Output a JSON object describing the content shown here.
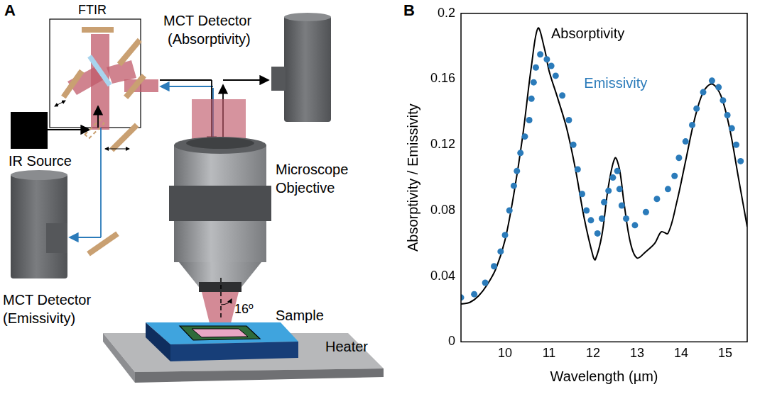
{
  "diagram": {
    "panel_label": "A",
    "ftir": "FTIR",
    "absorptivity_detector": [
      "MCT Detector",
      "(Absorptivity)"
    ],
    "ir_source": "IR Source",
    "emissivity_detector": [
      "MCT Detector",
      "(Emissivity)"
    ],
    "objective": [
      "Microscope",
      "Objective"
    ],
    "angle": "16º",
    "sample": "Sample",
    "heater": "Heater"
  },
  "chart_data": {
    "type": "scatter",
    "panel_label": "B",
    "x_label": "Wavelength (µm)",
    "y_label": "Absorptivity / Emissivity",
    "xlim": [
      9,
      15.5
    ],
    "xticks": [
      10,
      11,
      12,
      13,
      14,
      15
    ],
    "ylim": [
      0,
      0.2
    ],
    "yticks": [
      0,
      0.04,
      0.08,
      0.12,
      0.16,
      0.2
    ],
    "grid": false,
    "series": [
      {
        "name": "Absorptivity",
        "color": "#000000",
        "type": "line",
        "line_style": "solid",
        "x": [
          9.0,
          9.2,
          9.4,
          9.6,
          9.8,
          10.0,
          10.2,
          10.4,
          10.6,
          10.75,
          10.9,
          11.0,
          11.2,
          11.4,
          11.6,
          11.8,
          12.0,
          12.05,
          12.2,
          12.35,
          12.5,
          12.6,
          12.7,
          12.85,
          13.0,
          13.2,
          13.4,
          13.55,
          13.7,
          13.9,
          14.1,
          14.3,
          14.5,
          14.7,
          14.9,
          15.1,
          15.3,
          15.5
        ],
        "values": [
          0.023,
          0.024,
          0.028,
          0.035,
          0.045,
          0.062,
          0.09,
          0.125,
          0.168,
          0.191,
          0.178,
          0.165,
          0.148,
          0.13,
          0.105,
          0.075,
          0.052,
          0.05,
          0.065,
          0.095,
          0.112,
          0.105,
          0.085,
          0.06,
          0.051,
          0.055,
          0.06,
          0.067,
          0.066,
          0.085,
          0.11,
          0.135,
          0.152,
          0.157,
          0.15,
          0.13,
          0.1,
          0.07
        ]
      },
      {
        "name": "Emissivity",
        "color": "#2b7bba",
        "type": "scatter",
        "marker": "circle",
        "x": [
          9.0,
          9.3,
          9.55,
          9.75,
          9.9,
          10.0,
          10.1,
          10.2,
          10.27,
          10.35,
          10.45,
          10.55,
          10.6,
          10.65,
          10.7,
          10.8,
          10.95,
          11.05,
          11.15,
          11.3,
          11.45,
          11.55,
          11.65,
          11.75,
          11.85,
          11.95,
          12.1,
          12.2,
          12.25,
          12.35,
          12.45,
          12.55,
          12.6,
          12.65,
          12.75,
          12.95,
          13.2,
          13.45,
          13.7,
          13.85,
          13.95,
          14.1,
          14.25,
          14.35,
          14.5,
          14.7,
          14.85,
          14.95,
          15.05,
          15.15,
          15.25,
          15.35
        ],
        "values": [
          0.027,
          0.029,
          0.036,
          0.046,
          0.055,
          0.065,
          0.08,
          0.095,
          0.104,
          0.115,
          0.125,
          0.135,
          0.148,
          0.158,
          0.167,
          0.175,
          0.172,
          0.168,
          0.162,
          0.15,
          0.135,
          0.12,
          0.105,
          0.09,
          0.08,
          0.074,
          0.066,
          0.075,
          0.085,
          0.092,
          0.1,
          0.104,
          0.093,
          0.083,
          0.075,
          0.071,
          0.079,
          0.087,
          0.093,
          0.101,
          0.112,
          0.122,
          0.132,
          0.142,
          0.152,
          0.159,
          0.155,
          0.147,
          0.138,
          0.13,
          0.12,
          0.11
        ]
      }
    ]
  }
}
